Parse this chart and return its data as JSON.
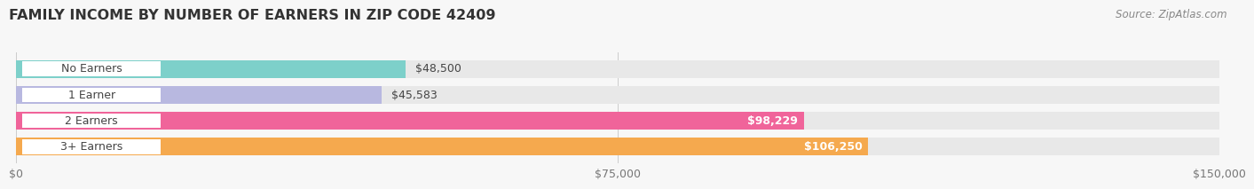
{
  "title": "FAMILY INCOME BY NUMBER OF EARNERS IN ZIP CODE 42409",
  "source": "Source: ZipAtlas.com",
  "categories": [
    "No Earners",
    "1 Earner",
    "2 Earners",
    "3+ Earners"
  ],
  "values": [
    48500,
    45583,
    98229,
    106250
  ],
  "bar_colors": [
    "#7dd0ca",
    "#b8b8e0",
    "#f0649a",
    "#f5a94e"
  ],
  "bar_bg_color": "#e8e8e8",
  "label_colors": [
    "#444444",
    "#444444",
    "#ffffff",
    "#ffffff"
  ],
  "value_labels": [
    "$48,500",
    "$45,583",
    "$98,229",
    "$106,250"
  ],
  "x_max": 150000,
  "x_ticks": [
    0,
    75000,
    150000
  ],
  "x_tick_labels": [
    "$0",
    "$75,000",
    "$150,000"
  ],
  "bg_color": "#f7f7f7",
  "title_fontsize": 11.5,
  "source_fontsize": 8.5,
  "label_fontsize": 9,
  "value_fontsize": 9
}
